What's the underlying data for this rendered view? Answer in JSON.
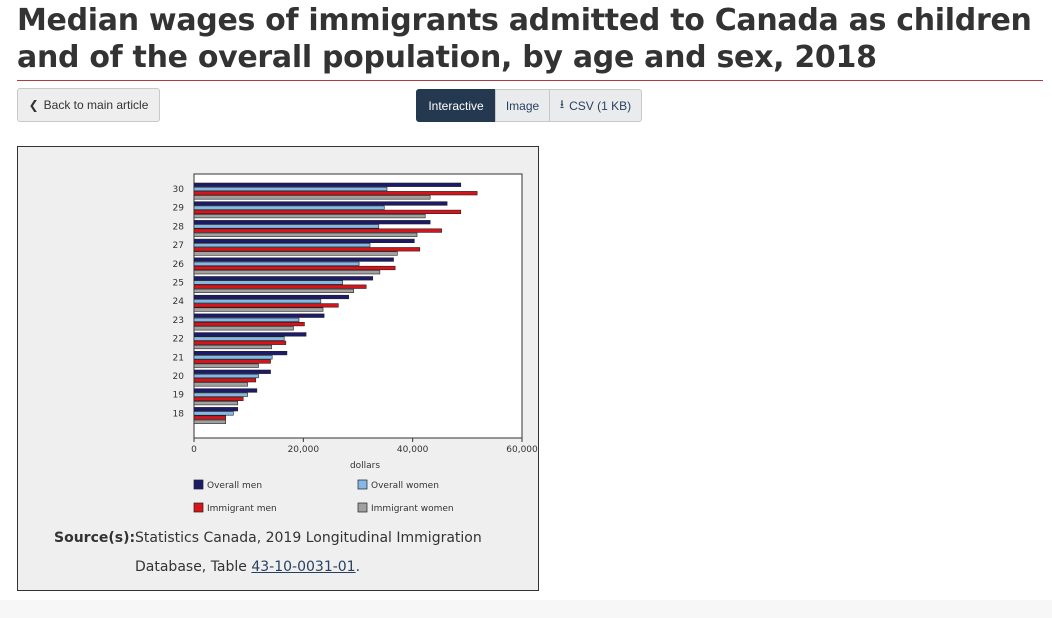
{
  "page": {
    "title": "Median wages of immigrants admitted to Canada as children and of the overall population, by age and sex, 2018",
    "back_label": "Back to main article",
    "tabs": {
      "interactive": "Interactive",
      "image": "Image",
      "csv": "CSV (1 KB)"
    }
  },
  "source": {
    "label": "Source(s):",
    "text": "Statistics Canada, 2019 Longitudinal Immigration Database, Table ",
    "link": "43-10-0031-01",
    "end": "."
  },
  "chart_data": {
    "type": "bar",
    "orientation": "horizontal",
    "title": "",
    "xlabel": "dollars",
    "ylabel": "",
    "xlim": [
      0,
      60000
    ],
    "xticks": [
      0,
      20000,
      40000,
      60000
    ],
    "xtick_labels": [
      "0",
      "20,000",
      "40,000",
      "60,000"
    ],
    "categories": [
      "18",
      "19",
      "20",
      "21",
      "22",
      "23",
      "24",
      "25",
      "26",
      "27",
      "28",
      "29",
      "30"
    ],
    "series": [
      {
        "name": "Overall men",
        "color": "#1c1a6b",
        "values": [
          8000,
          11500,
          14000,
          17000,
          20500,
          23800,
          28300,
          32700,
          36500,
          40300,
          43200,
          46300,
          48800
        ]
      },
      {
        "name": "Overall women",
        "color": "#84b8e6",
        "values": [
          7200,
          9800,
          11800,
          14300,
          16500,
          19200,
          23200,
          27200,
          30200,
          32200,
          33800,
          34800,
          35300
        ]
      },
      {
        "name": "Immigrant men",
        "color": "#d9131a",
        "values": [
          5800,
          9000,
          11300,
          14000,
          16800,
          20200,
          26400,
          31500,
          36800,
          41300,
          45300,
          48800,
          51800
        ]
      },
      {
        "name": "Immigrant women",
        "color": "#a0a0a0",
        "values": [
          5800,
          8000,
          9800,
          11800,
          14200,
          18200,
          23600,
          29200,
          34000,
          37200,
          40800,
          42300,
          43200
        ]
      }
    ],
    "legend": [
      "Overall men",
      "Overall women",
      "Immigrant men",
      "Immigrant women"
    ],
    "legend_position": "bottom"
  }
}
